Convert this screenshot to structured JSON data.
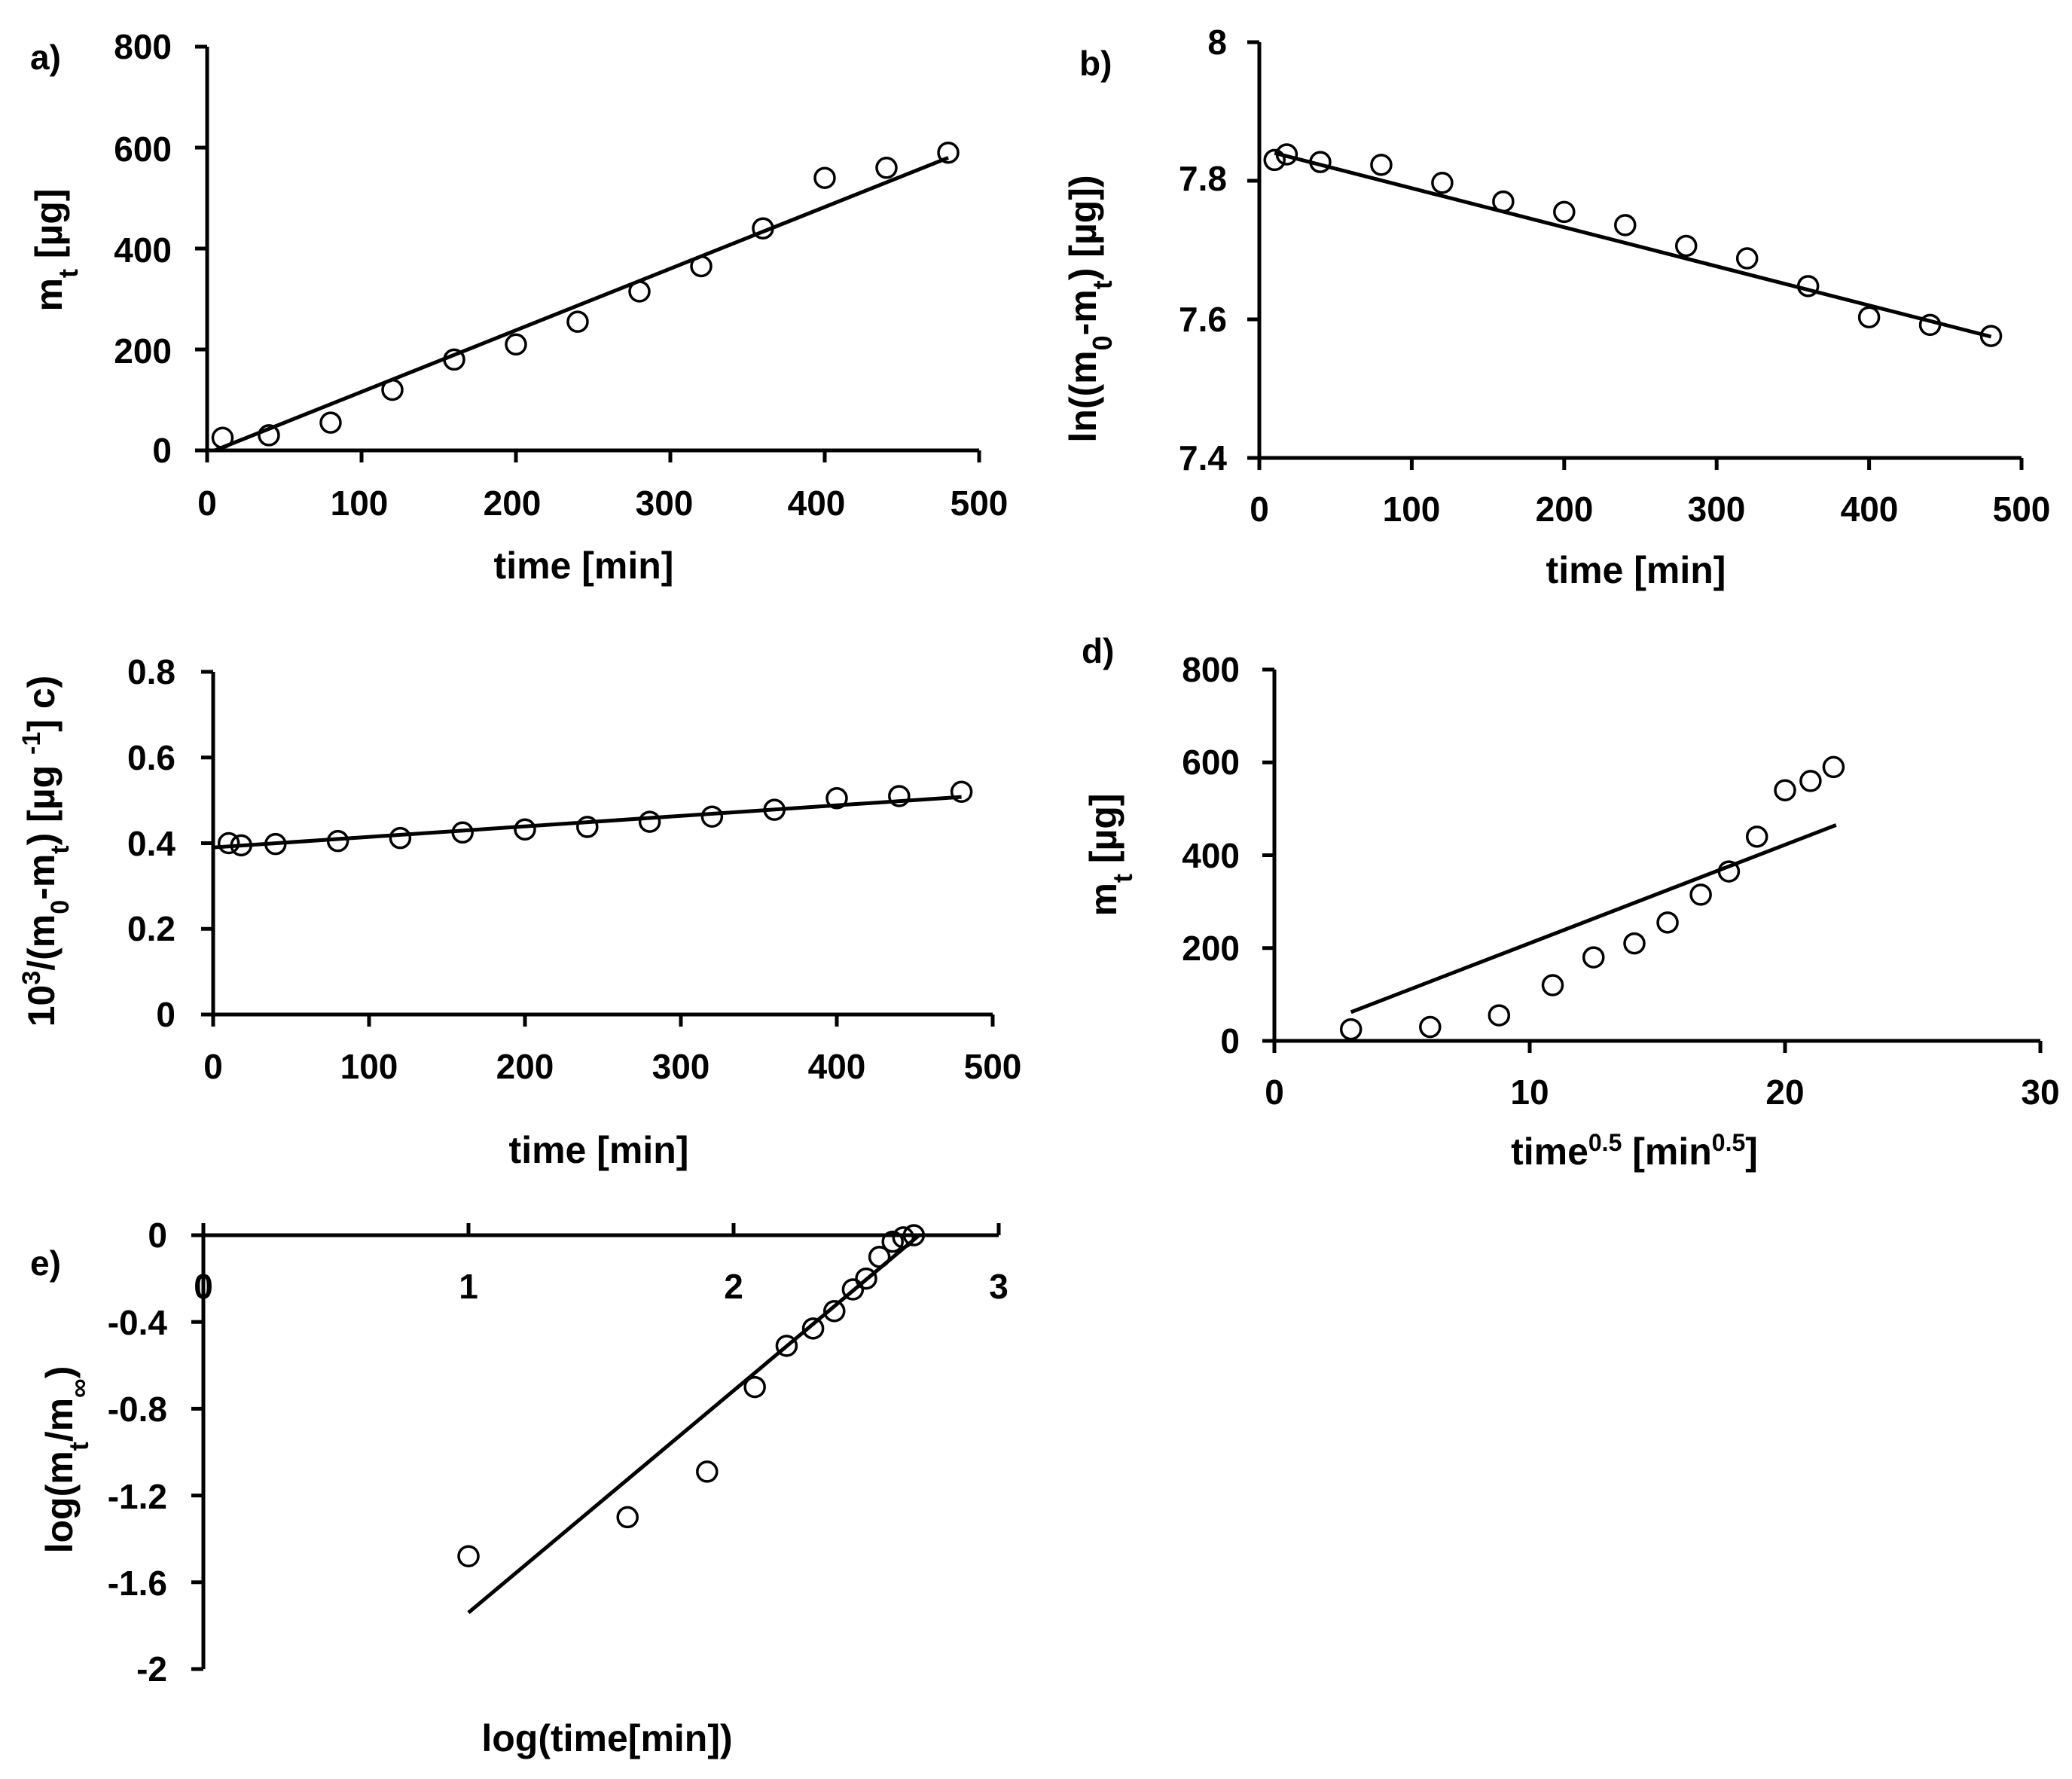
{
  "chart_data": [
    {
      "id": "a",
      "type": "scatter",
      "panel_label": "a)",
      "xlabel": "time [min]",
      "ylabel": "m_t [µg]",
      "xlim": [
        0,
        500
      ],
      "ylim": [
        0,
        800
      ],
      "xticks": [
        "0",
        "100",
        "200",
        "300",
        "400",
        "500"
      ],
      "yticks": [
        "0",
        "200",
        "400",
        "600",
        "800"
      ],
      "points": {
        "x": [
          10,
          40,
          80,
          120,
          160,
          200,
          240,
          280,
          320,
          360,
          400,
          440,
          480
        ],
        "y": [
          25,
          30,
          55,
          120,
          180,
          210,
          255,
          315,
          365,
          440,
          540,
          560,
          590
        ]
      },
      "fit": {
        "x": [
          5,
          480
        ],
        "y": [
          0,
          580
        ]
      }
    },
    {
      "id": "b",
      "type": "scatter",
      "panel_label": "b)",
      "xlabel": "time [min]",
      "ylabel": "ln((m_0-m_t) [µg])",
      "xlim": [
        0,
        500
      ],
      "ylim": [
        7.4,
        8
      ],
      "xticks": [
        "0",
        "100",
        "200",
        "300",
        "400",
        "500"
      ],
      "yticks": [
        "7.4",
        "7.6",
        "7.8",
        "8"
      ],
      "points": {
        "x": [
          10,
          18,
          40,
          80,
          120,
          160,
          200,
          240,
          280,
          320,
          360,
          400,
          440,
          480
        ],
        "y": [
          7.83,
          7.838,
          7.827,
          7.823,
          7.797,
          7.77,
          7.755,
          7.736,
          7.706,
          7.688,
          7.648,
          7.603,
          7.592,
          7.576
        ]
      },
      "fit": {
        "x": [
          10,
          480
        ],
        "y": [
          7.84,
          7.575
        ]
      }
    },
    {
      "id": "c",
      "type": "scatter",
      "panel_label": "c)",
      "xlabel": "time [min]",
      "ylabel": "10³/(m_0-m_t) [µg⁻¹]",
      "xlim": [
        0,
        500
      ],
      "ylim": [
        0,
        0.8
      ],
      "xticks": [
        "0",
        "100",
        "200",
        "300",
        "400",
        "500"
      ],
      "yticks": [
        "0",
        "0.2",
        "0.4",
        "0.6",
        "0.8"
      ],
      "points": {
        "x": [
          10,
          18,
          40,
          80,
          120,
          160,
          200,
          240,
          280,
          320,
          360,
          400,
          440,
          480
        ],
        "y": [
          0.4,
          0.395,
          0.398,
          0.405,
          0.412,
          0.425,
          0.432,
          0.438,
          0.45,
          0.462,
          0.478,
          0.505,
          0.51,
          0.52
        ]
      },
      "fit": {
        "x": [
          0,
          480
        ],
        "y": [
          0.39,
          0.508
        ]
      }
    },
    {
      "id": "d",
      "type": "scatter",
      "panel_label": "d)",
      "xlabel": "time^0.5 [min^0.5]",
      "ylabel": "m_t [µg]",
      "xlim": [
        0,
        30
      ],
      "ylim": [
        0,
        800
      ],
      "xticks": [
        "0",
        "10",
        "20",
        "30"
      ],
      "yticks": [
        "0",
        "200",
        "400",
        "600",
        "800"
      ],
      "points": {
        "x": [
          3.0,
          6.1,
          8.8,
          10.9,
          12.5,
          14.1,
          15.4,
          16.7,
          17.8,
          18.9,
          20.0,
          21.0,
          21.9
        ],
        "y": [
          25,
          30,
          55,
          120,
          180,
          210,
          255,
          315,
          365,
          440,
          540,
          560,
          590
        ]
      },
      "fit": {
        "x": [
          3.0,
          22.0
        ],
        "y": [
          62,
          465
        ]
      }
    },
    {
      "id": "e",
      "type": "scatter",
      "panel_label": "e)",
      "xlabel": "log(time[min])",
      "ylabel": "log(m_t/m_∞)",
      "xlim": [
        0,
        3
      ],
      "ylim": [
        -2,
        0
      ],
      "xticks": [
        "0",
        "1",
        "2",
        "3"
      ],
      "yticks": [
        "0",
        "-0.4",
        "-0.8",
        "-1.2",
        "-1.6",
        "-2"
      ],
      "points": {
        "x": [
          1.0,
          1.6,
          1.9,
          2.08,
          2.2,
          2.3,
          2.38,
          2.45,
          2.5,
          2.55,
          2.6,
          2.64,
          2.68
        ],
        "y": [
          -1.48,
          -1.3,
          -1.09,
          -0.7,
          -0.51,
          -0.43,
          -0.35,
          -0.25,
          -0.2,
          -0.1,
          -0.03,
          -0.01,
          0.0
        ]
      },
      "fit": {
        "x": [
          1.0,
          2.7
        ],
        "y": [
          -1.74,
          0.0
        ]
      }
    }
  ]
}
